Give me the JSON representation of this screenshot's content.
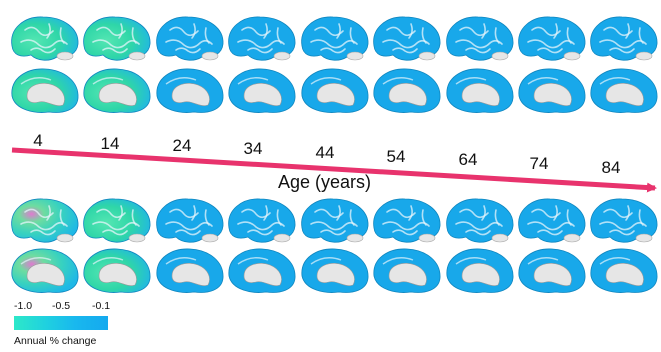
{
  "axis_title": "Age (years)",
  "ages": [
    "4",
    "14",
    "24",
    "34",
    "44",
    "54",
    "64",
    "74",
    "84"
  ],
  "legend": {
    "ticks": [
      "-1.0",
      "-0.5",
      "-0.1"
    ],
    "caption": "Annual % change"
  },
  "colors": {
    "arrow": "#e8336d",
    "brain_base": "#18a8ea",
    "brain_high": "#2de8c9",
    "brain_mid": "#6fdca0",
    "brain_hot": "#e07ad0",
    "wall": "#e6e6e6"
  },
  "rows": [
    {
      "name": "top-row",
      "panels": [
        "greenish",
        "greenish",
        "blue",
        "blue",
        "blue",
        "blue",
        "blue",
        "blue",
        "blue"
      ]
    },
    {
      "name": "bottom-row",
      "panels": [
        "mixed-hot",
        "greenish",
        "blue",
        "blue",
        "blue",
        "blue",
        "blue",
        "blue",
        "blue"
      ]
    }
  ]
}
